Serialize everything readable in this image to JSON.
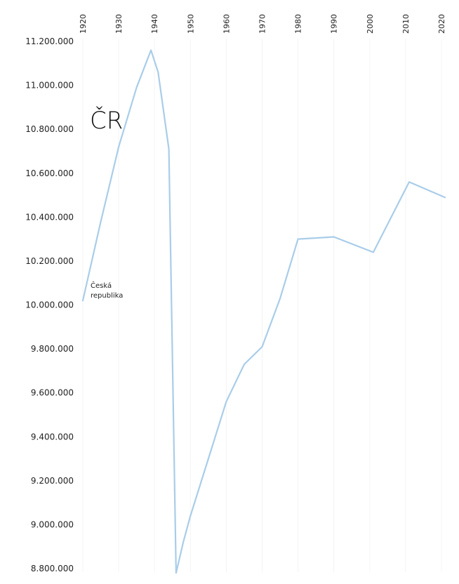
{
  "chart_data": {
    "type": "line",
    "title": "ČR",
    "annotation": [
      "Česká",
      "republika"
    ],
    "x_ticks": [
      1920,
      1930,
      1940,
      1950,
      1960,
      1970,
      1980,
      1990,
      2000,
      2010,
      2020
    ],
    "y_ticks": [
      8800000,
      9000000,
      9200000,
      9400000,
      9600000,
      9800000,
      10000000,
      10200000,
      10400000,
      10600000,
      10800000,
      11000000,
      11200000
    ],
    "y_tick_labels": [
      "8.800.000",
      "9.000.000",
      "9.200.000",
      "9.400.000",
      "9.600.000",
      "9.800.000",
      "10.000.000",
      "10.200.000",
      "10.400.000",
      "10.600.000",
      "10.800.000",
      "11.000.000",
      "11.200.000"
    ],
    "xlim": [
      1920,
      2020
    ],
    "ylim": [
      8800000,
      11200000
    ],
    "grid": false,
    "series": [
      {
        "color": "#a9cde9",
        "x": [
          1920,
          1925,
          1930,
          1935,
          1939,
          1941,
          1944,
          1946,
          1948,
          1950,
          1955,
          1960,
          1965,
          1970,
          1975,
          1980,
          1990,
          2001,
          2011,
          2021
        ],
        "y": [
          10020000,
          10380000,
          10720000,
          10990000,
          11160000,
          11060000,
          10710000,
          8780000,
          8920000,
          9040000,
          9300000,
          9560000,
          9730000,
          9810000,
          10030000,
          10300000,
          10310000,
          10240000,
          10560000,
          10490000
        ]
      }
    ]
  }
}
